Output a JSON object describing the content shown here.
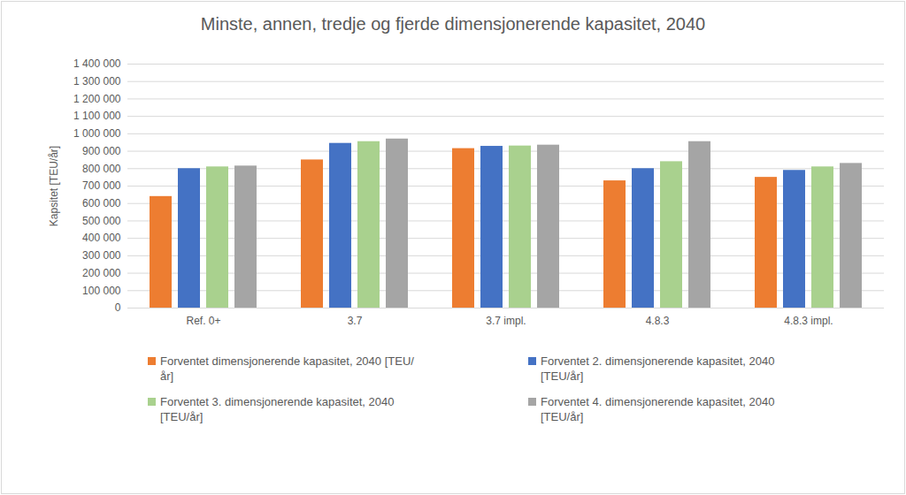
{
  "chart_data": {
    "type": "bar",
    "title": "Minste, annen, tredje og fjerde dimensjonerende kapasitet, 2040",
    "y_label": "Kapsitet [TEU/år]",
    "categories": [
      "Ref. 0+",
      "3.7",
      "3.7 impl.",
      "4.8.3",
      "4.8.3 impl."
    ],
    "series": [
      {
        "name": "Forventet dimensjonerende kapasitet, 2040 [TEU/år]",
        "color": "#ed7d31",
        "values": [
          640000,
          850000,
          915000,
          730000,
          750000
        ]
      },
      {
        "name": "Forventet 2. dimensjonerende kapasitet, 2040 [TEU/år]",
        "color": "#4472c4",
        "values": [
          800000,
          945000,
          928000,
          800000,
          790000
        ]
      },
      {
        "name": "Forventet 3. dimensjonerende kapasitet, 2040 [TEU/år]",
        "color": "#a9d18e",
        "values": [
          810000,
          955000,
          930000,
          840000,
          810000
        ]
      },
      {
        "name": "Forventet 4. dimensjonerende kapasitet, 2040 [TEU/år]",
        "color": "#a5a5a5",
        "values": [
          815000,
          970000,
          935000,
          955000,
          830000
        ]
      }
    ],
    "ylim": [
      0,
      1400000
    ],
    "yticks": [
      0,
      {
        "value": 100000,
        "label": "100 000"
      },
      {
        "value": 200000,
        "label": "200 000"
      },
      {
        "value": 300000,
        "label": "300 000"
      },
      {
        "value": 400000,
        "label": "400 000"
      },
      {
        "value": 500000,
        "label": "500 000"
      },
      {
        "value": 600000,
        "label": "600 000"
      },
      {
        "value": 700000,
        "label": "700 000"
      },
      {
        "value": 800000,
        "label": "800 000"
      },
      {
        "value": 900000,
        "label": "900 000"
      },
      {
        "value": 1000000,
        "label": "1 000 000"
      },
      {
        "value": 1100000,
        "label": "1 100 000"
      },
      {
        "value": 1200000,
        "label": "1 200 000"
      },
      {
        "value": 1300000,
        "label": "1 300 000"
      },
      {
        "value": 1400000,
        "label": "1 400 000"
      }
    ],
    "grid": true,
    "legend": "bottom"
  }
}
